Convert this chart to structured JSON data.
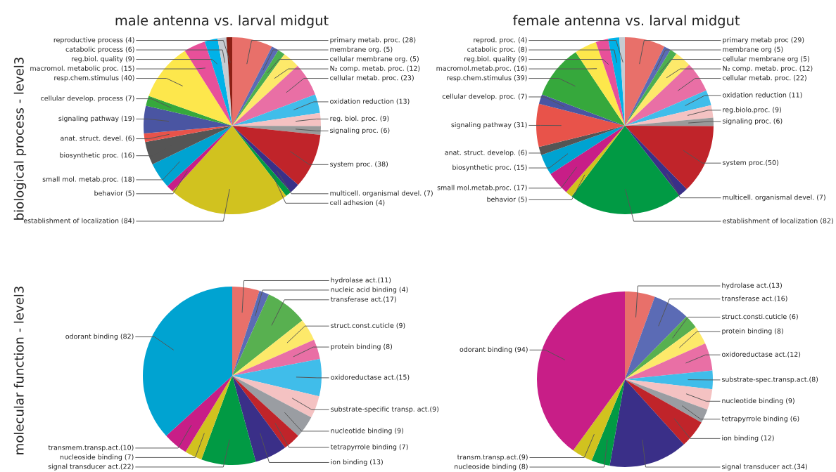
{
  "chart_data": [
    {
      "type": "pie",
      "title": "male antenna vs. larval midgut",
      "ylabel": "biological process - level3",
      "categories": [
        "primary metab. proc. (28)",
        "membrane org. (5)",
        "cellular membrane org. (5)",
        "N₂ comp. metab. proc. (12)",
        "cellular metab. proc. (23)",
        "oxidation reduction (13)",
        "reg. biol. proc. (9)",
        "signaling proc. (6)",
        "system proc. (38)",
        "multicell. organismal devel. (7)",
        "cell adhesion (4)",
        "establishment of localization (84)",
        "behavior (5)",
        "small mol. metab.proc. (18)",
        "biosynthetic proc. (16)",
        "anat. struct. devel. (6)",
        "signaling pathway (19)",
        "cellular develop. process (7)",
        "resp.chem.stimulus (40)",
        "macromol. metabolic proc. (15)",
        "reg.biol. quality (9)",
        "catabolic process (6)",
        "reproductive process (4)"
      ],
      "values": [
        28,
        5,
        5,
        12,
        23,
        13,
        9,
        6,
        38,
        7,
        4,
        84,
        5,
        18,
        16,
        6,
        19,
        7,
        40,
        15,
        9,
        6,
        4
      ],
      "colors": [
        "#e8706a",
        "#5b6bb5",
        "#4caf50",
        "#fde96a",
        "#e96fa5",
        "#40bdea",
        "#f4c2c2",
        "#9a9a9a",
        "#c0242a",
        "#3a3088",
        "#019a44",
        "#d1c21f",
        "#c81e87",
        "#00a3d1",
        "#555555",
        "#e8534a",
        "#4a55a2",
        "#36a83c",
        "#fde74c",
        "#e8509a",
        "#00b2e8",
        "#c7cbd1",
        "#8b2015"
      ]
    },
    {
      "type": "pie",
      "title": "female antenna vs. larval midgut",
      "categories": [
        "primary metab proc (29)",
        "membrane org (5)",
        "cellular membrane org (5)",
        "N₂ comp. metab. proc. (12)",
        "cellular metab. proc. (22)",
        "oxidation reduction (11)",
        "reg.biolo.proc. (9)",
        "signaling proc. (6)",
        "system proc.(50)",
        "multicell. organismal devel. (7)",
        "establishment of localization (82)",
        "behavior (5)",
        "small mol.metab.proc. (17)",
        "biosynthetic proc. (15)",
        "anat. struct. develop. (6)",
        "signaling pathway (31)",
        "cellular develop. proc. (7)",
        "resp.chem.stimulus (39)",
        "macromol.metab.proc. (16)",
        "reg.biol. quality (9)",
        "catabolic proc. (8)",
        "reprod. proc. (4)"
      ],
      "values": [
        29,
        5,
        5,
        12,
        22,
        11,
        9,
        6,
        50,
        7,
        82,
        5,
        17,
        15,
        6,
        31,
        7,
        39,
        16,
        9,
        8,
        4
      ],
      "colors": [
        "#e8706a",
        "#5b6bb5",
        "#4caf50",
        "#fde96a",
        "#e96fa5",
        "#40bdea",
        "#f4c2c2",
        "#9a9a9a",
        "#c0242a",
        "#3a3088",
        "#019a44",
        "#d1c21f",
        "#c81e87",
        "#00a3d1",
        "#555555",
        "#e8534a",
        "#4a55a2",
        "#36a83c",
        "#fde74c",
        "#e8509a",
        "#00b2e8",
        "#c7cbd1"
      ]
    },
    {
      "type": "pie",
      "ylabel": "molecular function - level3",
      "categories": [
        "hydrolase act.(11)",
        "nucleic acid binding (4)",
        "transferase act.(17)",
        "struct.const.cuticle (9)",
        "protein binding (8)",
        "oxidoreductase act.(15)",
        "substrate-specific transp. act.(9)",
        "nucleotide binding (9)",
        "tetrapyrrole binding (7)",
        "ion binding (13)",
        "signal transducer act.(22)",
        "nucleoside binding (7)",
        "transmem.transp.act.(10)",
        "odorant binding (82)"
      ],
      "values": [
        11,
        4,
        17,
        9,
        8,
        15,
        9,
        9,
        7,
        13,
        22,
        7,
        10,
        82
      ],
      "colors": [
        "#e8706a",
        "#5b6bb5",
        "#58b050",
        "#fde96a",
        "#e96fa5",
        "#40bdea",
        "#f4c2c2",
        "#9a9da2",
        "#c0242a",
        "#3a2f88",
        "#019a44",
        "#d1c21f",
        "#c81e87",
        "#00a3d1"
      ]
    },
    {
      "type": "pie",
      "categories": [
        "hydrolase act.(13)",
        "transferase act.(16)",
        "struct.consti.cuticle (6)",
        "protein binding (8)",
        "oxidoreductase act.(12)",
        "substrate-spec.transp.act.(8)",
        "nucleotide binding (9)",
        "tetrapyrrole binding (6)",
        "ion binding (12)",
        "signal transducer act.(34)",
        "nucleoside binding (8)",
        "transm.transp.act.(9)",
        "odorant binding (94)"
      ],
      "values": [
        13,
        16,
        6,
        8,
        12,
        8,
        9,
        6,
        12,
        34,
        8,
        9,
        94
      ],
      "colors": [
        "#e8706a",
        "#5b6bb5",
        "#58b050",
        "#fde96a",
        "#e96fa5",
        "#40bdea",
        "#f4c2c2",
        "#9a9da2",
        "#c0242a",
        "#3a2f88",
        "#019a44",
        "#d1c21f",
        "#c81e87"
      ]
    }
  ]
}
